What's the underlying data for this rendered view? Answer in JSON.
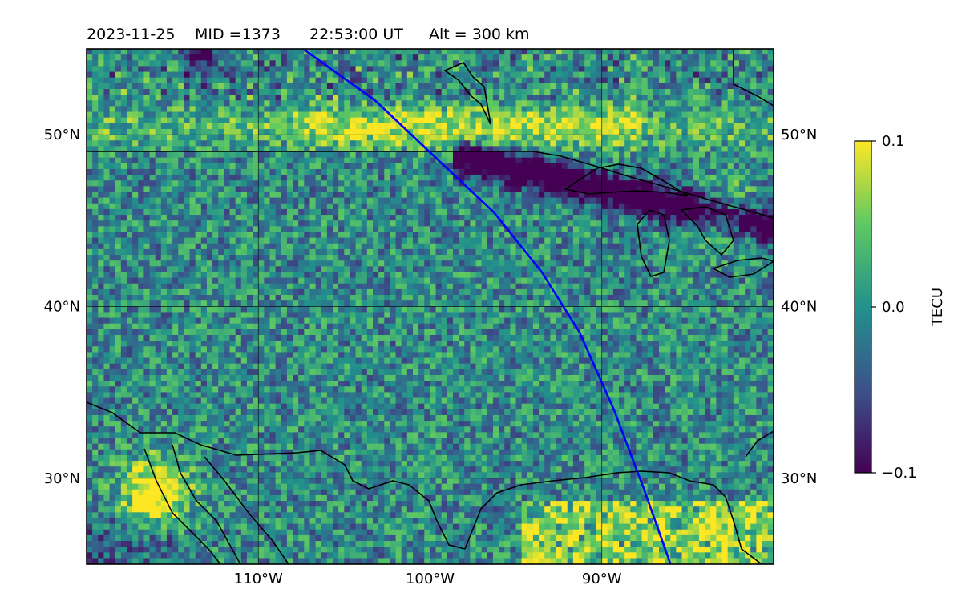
{
  "title": {
    "date": "2023-11-25",
    "mid": "MID =1373",
    "time": "22:53:00  UT",
    "altitude": "Alt = 300 km"
  },
  "map": {
    "lon_range": [
      -120,
      -80
    ],
    "lat_range": [
      25,
      55
    ],
    "lon_ticks": [
      {
        "value": -110,
        "label": "110°W"
      },
      {
        "value": -100,
        "label": "100°W"
      },
      {
        "value": -90,
        "label": "90°W"
      }
    ],
    "lat_ticks": [
      {
        "value": 30,
        "label": "30°N"
      },
      {
        "value": 40,
        "label": "40°N"
      },
      {
        "value": 50,
        "label": "50°N"
      }
    ],
    "grid": true,
    "field": "detrended TEC perturbation",
    "features": [
      {
        "name": "enhancement band",
        "lat_center": 50.5,
        "value": 0.1
      },
      {
        "name": "depletion band",
        "lat_center": 47.5,
        "value": -0.1
      },
      {
        "name": "southwest enhancement",
        "lon": -116,
        "lat": 29.5,
        "value": 0.1
      },
      {
        "name": "gulf coast enhancement",
        "lon": -90,
        "lat": 27,
        "value": 0.08
      }
    ],
    "track": {
      "color": "#0000ff",
      "points": [
        [
          -107.4,
          55
        ],
        [
          -103.2,
          52
        ],
        [
          -99.5,
          48.5
        ],
        [
          -96.3,
          45.5
        ],
        [
          -93.5,
          42
        ],
        [
          -91.3,
          38.5
        ],
        [
          -89.3,
          34
        ],
        [
          -87.6,
          29.5
        ],
        [
          -86,
          25
        ]
      ]
    }
  },
  "colorbar": {
    "label": "TECU",
    "ticks": [
      {
        "value": 0.1,
        "label": "0.1"
      },
      {
        "value": 0.0,
        "label": "0.0"
      },
      {
        "value": -0.1,
        "label": "−0.1"
      }
    ],
    "range": [
      -0.1,
      0.1
    ],
    "colormap": "viridis"
  },
  "colors": {
    "track": "#0000ff",
    "coastline": "#000000",
    "colormap_stops": [
      "#440154",
      "#3b528b",
      "#21918c",
      "#5ec962",
      "#fde725"
    ]
  }
}
